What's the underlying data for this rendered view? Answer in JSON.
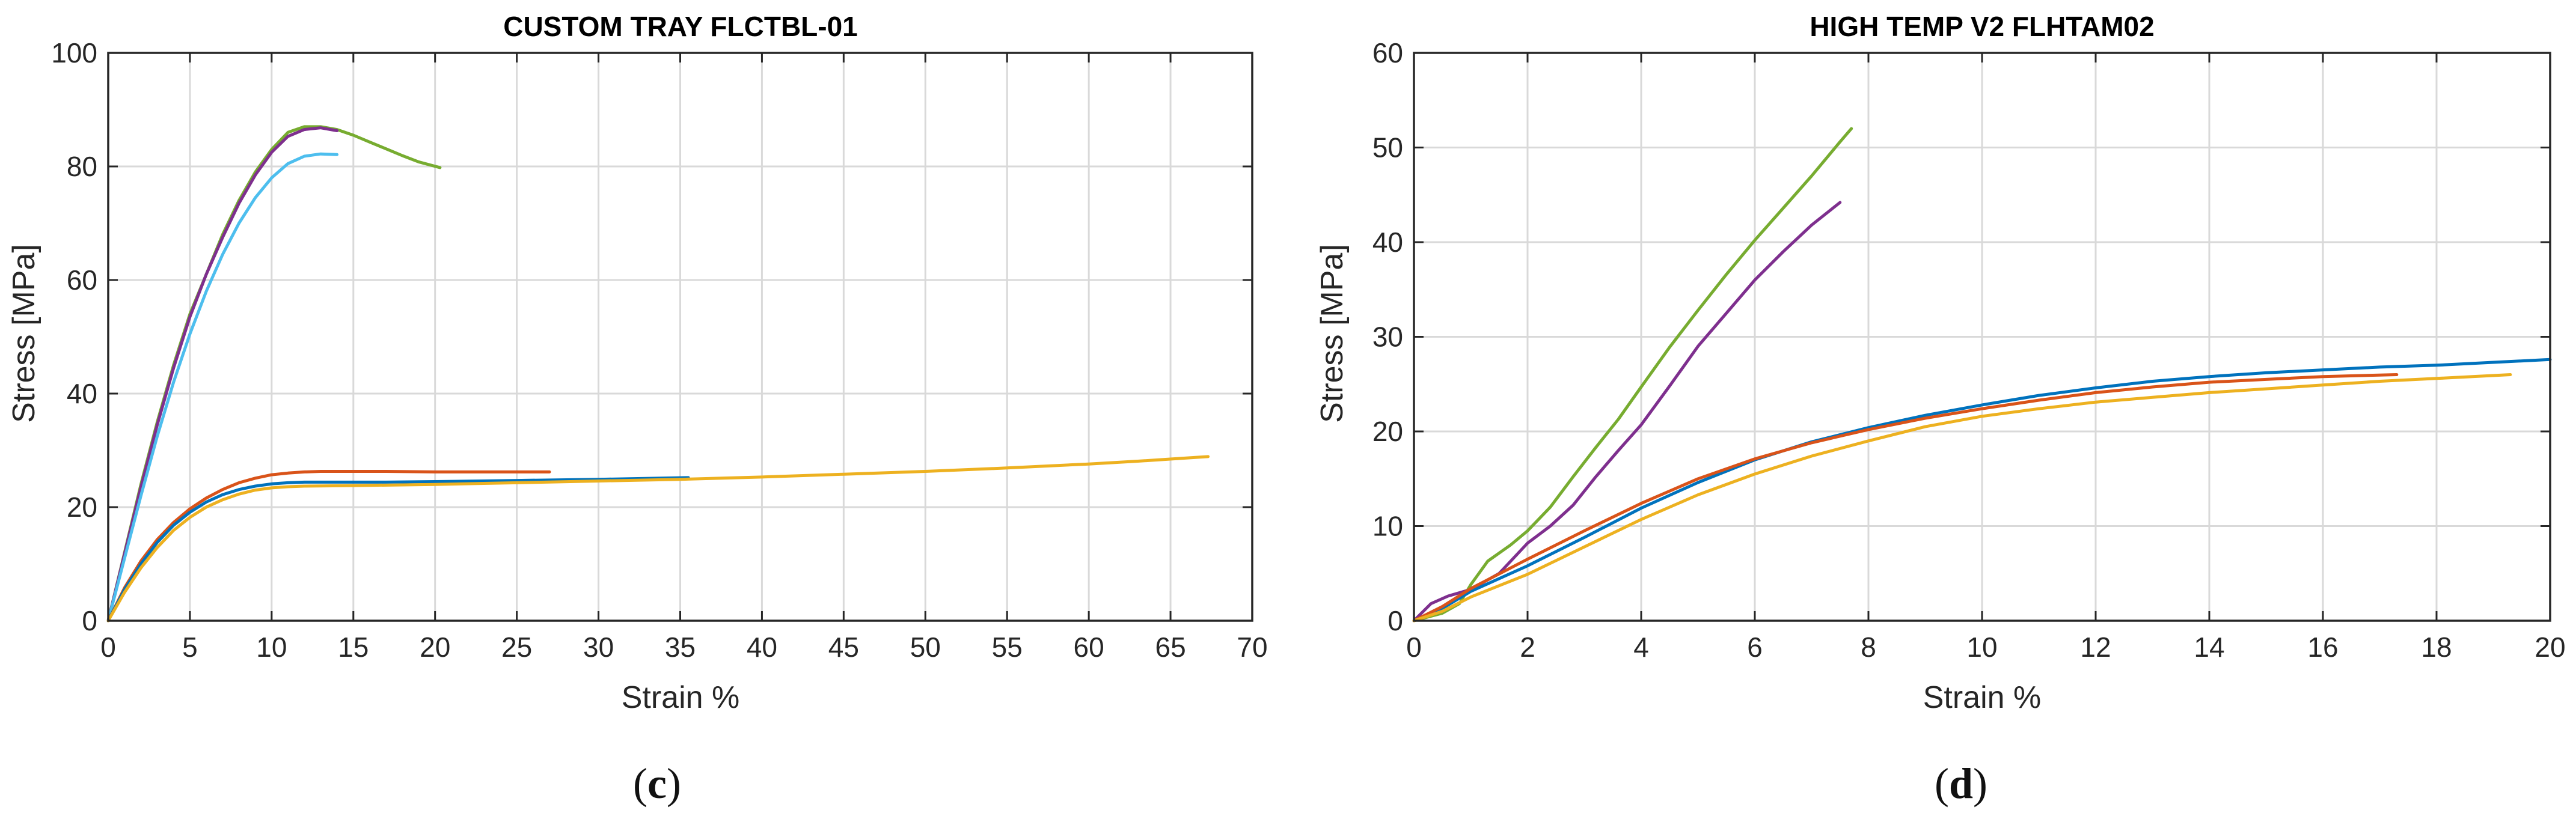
{
  "colors": {
    "blue": "#0072BD",
    "orange": "#D95319",
    "yellow": "#EDB120",
    "purple": "#7E2F8E",
    "green": "#77AC30",
    "cyan": "#4DBEEE",
    "grid": "#d9d9d9",
    "axis": "#262626"
  },
  "chart_data": [
    {
      "type": "line",
      "title": "CUSTOM TRAY FLCTBL-01",
      "xlabel": "Strain %",
      "ylabel": "Stress [MPa]",
      "panel_label": "c",
      "xlim": [
        0,
        70
      ],
      "ylim": [
        0,
        100
      ],
      "xticks": [
        0,
        5,
        10,
        15,
        20,
        25,
        30,
        35,
        40,
        45,
        50,
        55,
        60,
        65,
        70
      ],
      "yticks": [
        0,
        20,
        40,
        60,
        80,
        100
      ],
      "grid": true,
      "series": [
        {
          "color": "green",
          "x": [
            0,
            1,
            2,
            3,
            4,
            5,
            6,
            7,
            8,
            9,
            10,
            11,
            12,
            13,
            14,
            15,
            16,
            17,
            18,
            19,
            20.3
          ],
          "y": [
            0,
            12,
            24,
            35,
            45,
            54,
            61,
            68,
            74,
            79,
            83,
            86,
            87,
            87,
            86.5,
            85.5,
            84.3,
            83.1,
            81.9,
            80.8,
            79.8
          ]
        },
        {
          "color": "purple",
          "x": [
            0,
            1,
            2,
            3,
            4,
            5,
            6,
            7,
            8,
            9,
            10,
            11,
            12,
            13,
            14
          ],
          "y": [
            0,
            11.8,
            23.5,
            34.5,
            44.5,
            53.5,
            61,
            67.5,
            73.5,
            78.5,
            82.5,
            85.3,
            86.5,
            86.8,
            86.3
          ]
        },
        {
          "color": "cyan",
          "x": [
            0,
            1,
            2,
            3,
            4,
            5,
            6,
            7,
            8,
            9,
            10,
            11,
            12,
            13,
            14
          ],
          "y": [
            0,
            11,
            22,
            32.5,
            42,
            50.5,
            58,
            64.5,
            70,
            74.5,
            78,
            80.5,
            81.8,
            82.2,
            82.1
          ]
        },
        {
          "color": "orange",
          "x": [
            0,
            1,
            2,
            3,
            4,
            5,
            6,
            7,
            8,
            9,
            10,
            11,
            12,
            13,
            15,
            17,
            20,
            23,
            27
          ],
          "y": [
            0,
            5.8,
            10.5,
            14.3,
            17.3,
            19.7,
            21.6,
            23.1,
            24.3,
            25.1,
            25.7,
            26,
            26.2,
            26.3,
            26.3,
            26.3,
            26.2,
            26.2,
            26.2
          ]
        },
        {
          "color": "blue",
          "x": [
            0,
            1,
            2,
            3,
            4,
            5,
            6,
            7,
            8,
            9,
            10,
            11,
            12,
            14,
            17,
            20,
            25,
            30,
            35.5
          ],
          "y": [
            0,
            5.5,
            10,
            13.8,
            16.8,
            19.1,
            20.9,
            22.2,
            23.1,
            23.7,
            24.1,
            24.3,
            24.4,
            24.4,
            24.4,
            24.5,
            24.7,
            24.9,
            25.2
          ]
        },
        {
          "color": "yellow",
          "x": [
            0,
            1,
            2,
            3,
            4,
            5,
            6,
            7,
            8,
            9,
            10,
            11,
            12,
            15,
            20,
            25,
            30,
            35,
            40,
            45,
            50,
            55,
            60,
            63,
            67.3
          ],
          "y": [
            0,
            5,
            9.3,
            12.9,
            15.9,
            18.2,
            20,
            21.3,
            22.3,
            23,
            23.4,
            23.6,
            23.7,
            23.8,
            24,
            24.3,
            24.6,
            24.9,
            25.3,
            25.8,
            26.3,
            26.9,
            27.6,
            28.1,
            28.9
          ]
        }
      ]
    },
    {
      "type": "line",
      "title": "HIGH TEMP V2 FLHTAM02",
      "xlabel": "Strain %",
      "ylabel": "Stress [MPa]",
      "panel_label": "d",
      "xlim": [
        0,
        20
      ],
      "ylim": [
        0,
        60
      ],
      "xticks": [
        0,
        2,
        4,
        6,
        8,
        10,
        12,
        14,
        16,
        18,
        20
      ],
      "yticks": [
        0,
        10,
        20,
        30,
        40,
        50,
        60
      ],
      "grid": true,
      "series": [
        {
          "color": "green",
          "x": [
            0,
            0.5,
            0.8,
            1.0,
            1.3,
            1.7,
            2.0,
            2.4,
            2.8,
            3.2,
            3.6,
            4.0,
            4.5,
            5.0,
            5.5,
            6.0,
            6.5,
            7.0,
            7.5,
            7.7
          ],
          "y": [
            0,
            0.8,
            1.8,
            3.8,
            6.3,
            8.0,
            9.5,
            12.0,
            15.2,
            18.3,
            21.3,
            24.7,
            28.9,
            32.8,
            36.6,
            40.2,
            43.6,
            47.0,
            50.6,
            52.0
          ]
        },
        {
          "color": "purple",
          "x": [
            0,
            0.3,
            0.6,
            1.0,
            1.5,
            2.0,
            2.4,
            2.8,
            3.2,
            3.6,
            4.0,
            4.5,
            5.0,
            5.5,
            6.0,
            6.5,
            7.0,
            7.5
          ],
          "y": [
            0,
            1.8,
            2.6,
            3.3,
            5.0,
            8.2,
            10.0,
            12.2,
            15.2,
            18.0,
            20.7,
            24.8,
            29.0,
            32.5,
            36.0,
            39.0,
            41.8,
            44.2
          ]
        },
        {
          "color": "blue",
          "x": [
            0,
            0.5,
            1,
            2,
            3,
            4,
            5,
            6,
            7,
            8,
            9,
            10,
            11,
            12,
            13,
            14,
            15,
            16,
            17,
            18,
            19,
            20
          ],
          "y": [
            0,
            1.3,
            3.1,
            5.8,
            8.8,
            11.9,
            14.6,
            17.0,
            18.9,
            20.4,
            21.7,
            22.8,
            23.8,
            24.6,
            25.3,
            25.8,
            26.2,
            26.5,
            26.8,
            27.0,
            27.3,
            27.6
          ]
        },
        {
          "color": "orange",
          "x": [
            0,
            0.5,
            1,
            2,
            3,
            4,
            5,
            6,
            7,
            8,
            9,
            10,
            11,
            12,
            13,
            14,
            15,
            16,
            17.3
          ],
          "y": [
            0,
            1.5,
            3.4,
            6.5,
            9.5,
            12.4,
            15.0,
            17.1,
            18.8,
            20.2,
            21.4,
            22.4,
            23.3,
            24.1,
            24.7,
            25.2,
            25.5,
            25.8,
            26.0
          ]
        },
        {
          "color": "yellow",
          "x": [
            0,
            0.5,
            1,
            2,
            3,
            4,
            5,
            6,
            7,
            8,
            9,
            10,
            11,
            12,
            13,
            14,
            15,
            16,
            17,
            18,
            19.3
          ],
          "y": [
            0,
            1.0,
            2.5,
            4.9,
            7.8,
            10.7,
            13.3,
            15.5,
            17.4,
            19.0,
            20.5,
            21.6,
            22.4,
            23.1,
            23.6,
            24.1,
            24.5,
            24.9,
            25.3,
            25.6,
            26.0
          ]
        }
      ]
    }
  ]
}
